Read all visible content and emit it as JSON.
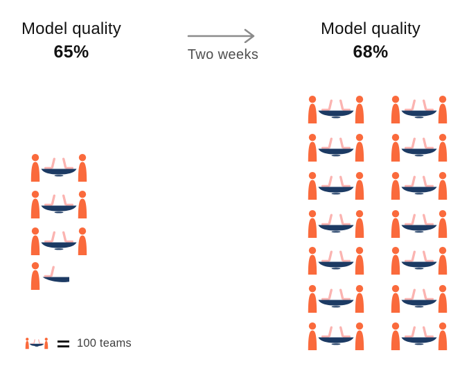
{
  "palette": {
    "background": "#FFFFFF",
    "person": "#FA6A3C",
    "table": "#1C3A63",
    "laptop": "#FBB4B1",
    "arrow": "#8A8A8A",
    "heading_text": "#121212",
    "transition_text": "#4E4E4E",
    "legend_text": "#3F3F3F"
  },
  "before": {
    "title": "Model quality",
    "value": "65%",
    "full_icon_count": 3,
    "half_icon_count": 1,
    "teams_represented": 350
  },
  "transition": {
    "label": "Two weeks",
    "arrow_icon": "right-arrow"
  },
  "after": {
    "title": "Model quality",
    "value": "68%",
    "full_icon_count": 14,
    "grid_columns": 2,
    "grid_rows": 7,
    "teams_represented": 1400
  },
  "legend": {
    "icon": "team-at-table-icon",
    "equals": "=",
    "label": "100 teams",
    "icon_value": 100
  },
  "chart_data": {
    "type": "pictogram",
    "icon_unit": 100,
    "icon_unit_label": "100 teams",
    "unit_icon_description": "two people seated at a table with two laptops",
    "categories": [
      "Model quality 65%",
      "Model quality 68%"
    ],
    "series": [
      {
        "name": "Teams",
        "values": [
          350,
          1400
        ]
      }
    ],
    "icon_counts": [
      3.5,
      14
    ],
    "annotations": [
      "Two weeks"
    ],
    "legend_position": "bottom-left"
  }
}
